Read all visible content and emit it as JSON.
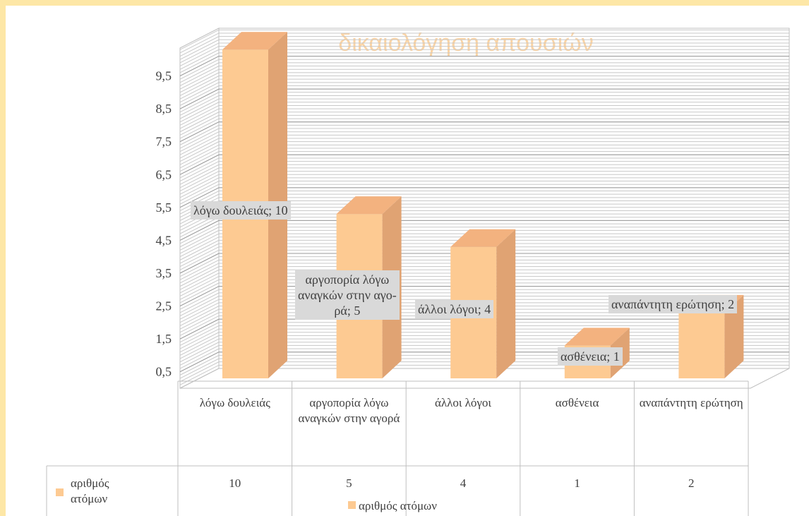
{
  "chart_data": {
    "type": "bar3d",
    "title": "δικαιολόγηση απουσιών",
    "categories": [
      "λόγω δουλειάς",
      "αργοπορία λόγω αναγκών στην αγορά",
      "άλλοι λόγοι",
      "ασθένεια",
      "αναπάντητη ερώτηση"
    ],
    "series": [
      {
        "name": "αριθμός ατόμων",
        "color": "#fdca92",
        "values": [
          10,
          5,
          4,
          1,
          2
        ],
        "value_labels": [
          "λόγω δουλειάς; 10",
          "αργοπορία λόγω\nαναγκών στην αγο-\nρά; 5",
          "άλλοι λόγοι; 4",
          "ασθένεια; 1",
          "αναπάντητη ερώτηση; 2"
        ]
      }
    ],
    "ylim": [
      0,
      10.35
    ],
    "yticks": [
      {
        "value": 0.5,
        "label": "0,5"
      },
      {
        "value": 1.5,
        "label": "1,5"
      },
      {
        "value": 2.5,
        "label": "2,5"
      },
      {
        "value": 3.5,
        "label": "3,5"
      },
      {
        "value": 4.5,
        "label": "4,5"
      },
      {
        "value": 5.5,
        "label": "5,5"
      },
      {
        "value": 6.5,
        "label": "6,5"
      },
      {
        "value": 7.5,
        "label": "7,5"
      },
      {
        "value": 8.5,
        "label": "8,5"
      },
      {
        "value": 9.5,
        "label": "9,5"
      }
    ],
    "minor_grid_step": 0.1,
    "grid": true,
    "legend": "bottom"
  }
}
